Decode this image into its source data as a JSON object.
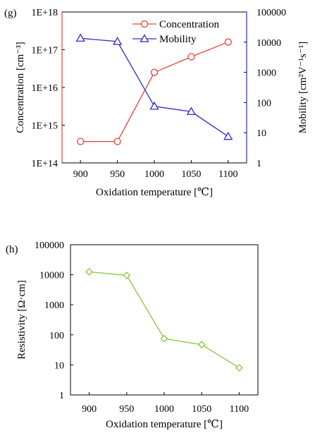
{
  "chart_data": [
    {
      "panel_label": "(g)",
      "type": "line",
      "xlabel": "Oxidation temperature [℃]",
      "ylabel_left": "Concentration [cm⁻³]",
      "ylabel_right": "Mobility [cm²V⁻¹s⁻¹]",
      "x": [
        900,
        950,
        1000,
        1050,
        1100
      ],
      "x_ticks": [
        "900",
        "950",
        "1000",
        "1050",
        "1100"
      ],
      "xlim": [
        875,
        1125
      ],
      "y_left_scale": "log",
      "y_left_lim": [
        100000000000000.0,
        1e+18
      ],
      "y_left_ticks": [
        "1E+14",
        "1E+15",
        "1E+16",
        "1E+17",
        "1E+18"
      ],
      "y_right_scale": "log",
      "y_right_lim": [
        1,
        100000
      ],
      "y_right_ticks": [
        "1",
        "10",
        "100",
        "1000",
        "10000",
        "100000"
      ],
      "grid": false,
      "legend_position": "top-right",
      "series": [
        {
          "name": "Concentration",
          "axis": "left",
          "marker": "circle",
          "color": "#e8403a",
          "values": [
            370000000000000.0,
            370000000000000.0,
            2.5e+16,
            6.5e+16,
            1.6e+17
          ]
        },
        {
          "name": "Mobility",
          "axis": "right",
          "marker": "triangle",
          "color": "#2c2ccc",
          "values": [
            13500,
            10500,
            75,
            50,
            7.5
          ]
        }
      ]
    },
    {
      "panel_label": "(h)",
      "type": "line",
      "xlabel": "Oxidation temperature [℃]",
      "ylabel": "Resistivity [Ω·cm]",
      "x": [
        900,
        950,
        1000,
        1050,
        1100
      ],
      "x_ticks": [
        "900",
        "950",
        "1000",
        "1050",
        "1100"
      ],
      "xlim": [
        875,
        1125
      ],
      "y_scale": "log",
      "ylim": [
        1,
        100000
      ],
      "y_ticks": [
        "1",
        "10",
        "100",
        "1000",
        "10000",
        "100000"
      ],
      "grid": false,
      "series": [
        {
          "marker": "diamond",
          "color": "#8cc63f",
          "values": [
            12500,
            9500,
            75,
            47,
            8
          ]
        }
      ]
    }
  ]
}
